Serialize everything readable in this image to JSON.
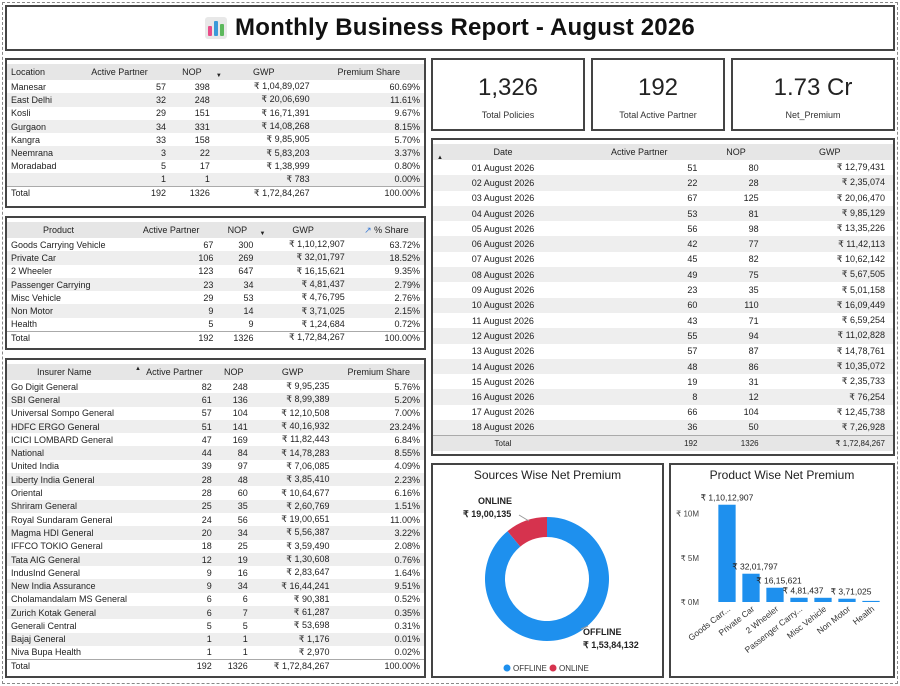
{
  "header": {
    "title": "Monthly Business Report - August 2026"
  },
  "location_table": {
    "columns": [
      "Location",
      "Active Partner",
      "NOP",
      "GWP",
      "Premium Share"
    ],
    "rows": [
      [
        "Manesar",
        "57",
        "398",
        "₹ 1,04,89,027",
        "60.69%"
      ],
      [
        "East Delhi",
        "32",
        "248",
        "₹ 20,06,690",
        "11.61%"
      ],
      [
        "Kosli",
        "29",
        "151",
        "₹ 16,71,391",
        "9.67%"
      ],
      [
        "Gurgaon",
        "34",
        "331",
        "₹ 14,08,268",
        "8.15%"
      ],
      [
        "Kangra",
        "33",
        "158",
        "₹ 9,85,905",
        "5.70%"
      ],
      [
        "Neemrana",
        "3",
        "22",
        "₹ 5,83,203",
        "3.37%"
      ],
      [
        "Moradabad",
        "5",
        "17",
        "₹ 1,38,999",
        "0.80%"
      ],
      [
        "",
        "1",
        "1",
        "₹ 783",
        "0.00%"
      ]
    ],
    "total": [
      "Total",
      "192",
      "1326",
      "₹ 1,72,84,267",
      "100.00%"
    ]
  },
  "product_table": {
    "columns": [
      "Product",
      "Active Partner",
      "NOP",
      "GWP",
      "% Share"
    ],
    "rows": [
      [
        "Goods Carrying Vehicle",
        "67",
        "300",
        "₹ 1,10,12,907",
        "63.72%"
      ],
      [
        "Private Car",
        "106",
        "269",
        "₹ 32,01,797",
        "18.52%"
      ],
      [
        "2 Wheeler",
        "123",
        "647",
        "₹ 16,15,621",
        "9.35%"
      ],
      [
        "Passenger Carrying",
        "23",
        "34",
        "₹ 4,81,437",
        "2.79%"
      ],
      [
        "Misc Vehicle",
        "29",
        "53",
        "₹ 4,76,795",
        "2.76%"
      ],
      [
        "Non Motor",
        "9",
        "14",
        "₹ 3,71,025",
        "2.15%"
      ],
      [
        "Health",
        "5",
        "9",
        "₹ 1,24,684",
        "0.72%"
      ]
    ],
    "total": [
      "Total",
      "192",
      "1326",
      "₹ 1,72,84,267",
      "100.00%"
    ]
  },
  "insurer_table": {
    "columns": [
      "Insurer Name",
      "Active Partner",
      "NOP",
      "GWP",
      "Premium Share"
    ],
    "rows": [
      [
        "Go Digit General",
        "82",
        "248",
        "₹ 9,95,235",
        "5.76%"
      ],
      [
        "SBI General",
        "61",
        "136",
        "₹ 8,99,389",
        "5.20%"
      ],
      [
        "Universal Sompo General",
        "57",
        "104",
        "₹ 12,10,508",
        "7.00%"
      ],
      [
        "HDFC ERGO General",
        "51",
        "141",
        "₹ 40,16,932",
        "23.24%"
      ],
      [
        "ICICI LOMBARD General",
        "47",
        "169",
        "₹ 11,82,443",
        "6.84%"
      ],
      [
        "National",
        "44",
        "84",
        "₹ 14,78,283",
        "8.55%"
      ],
      [
        "United India",
        "39",
        "97",
        "₹ 7,06,085",
        "4.09%"
      ],
      [
        "Liberty India General",
        "28",
        "48",
        "₹ 3,85,410",
        "2.23%"
      ],
      [
        "Oriental",
        "28",
        "60",
        "₹ 10,64,677",
        "6.16%"
      ],
      [
        "Shriram General",
        "25",
        "35",
        "₹ 2,60,769",
        "1.51%"
      ],
      [
        "Royal Sundaram General",
        "24",
        "56",
        "₹ 19,00,651",
        "11.00%"
      ],
      [
        "Magma HDI General",
        "20",
        "34",
        "₹ 5,56,387",
        "3.22%"
      ],
      [
        "IFFCO TOKIO General",
        "18",
        "25",
        "₹ 3,59,490",
        "2.08%"
      ],
      [
        "Tata AIG General",
        "12",
        "19",
        "₹ 1,30,608",
        "0.76%"
      ],
      [
        "IndusInd General",
        "9",
        "16",
        "₹ 2,83,647",
        "1.64%"
      ],
      [
        "New India Assurance",
        "9",
        "34",
        "₹ 16,44,241",
        "9.51%"
      ],
      [
        "Cholamandalam MS General",
        "6",
        "6",
        "₹ 90,381",
        "0.52%"
      ],
      [
        "Zurich Kotak General",
        "6",
        "7",
        "₹ 61,287",
        "0.35%"
      ],
      [
        "Generali Central",
        "5",
        "5",
        "₹ 53,698",
        "0.31%"
      ],
      [
        "Bajaj General",
        "1",
        "1",
        "₹ 1,176",
        "0.01%"
      ],
      [
        "Niva Bupa Health",
        "1",
        "1",
        "₹ 2,970",
        "0.02%"
      ]
    ],
    "total": [
      "Total",
      "192",
      "1326",
      "₹ 1,72,84,267",
      "100.00%"
    ]
  },
  "kpis": [
    {
      "value": "1,326",
      "label": "Total Policies"
    },
    {
      "value": "192",
      "label": "Total Active Partner"
    },
    {
      "value": "1.73 Cr",
      "label": "Net_Premium"
    }
  ],
  "date_table": {
    "columns": [
      "Date",
      "Active Partner",
      "NOP",
      "GWP"
    ],
    "rows": [
      [
        "01 August 2026",
        "51",
        "80",
        "₹ 12,79,431"
      ],
      [
        "02 August 2026",
        "22",
        "28",
        "₹ 2,35,074"
      ],
      [
        "03 August 2026",
        "67",
        "125",
        "₹ 20,06,470"
      ],
      [
        "04 August 2026",
        "53",
        "81",
        "₹ 9,85,129"
      ],
      [
        "05 August 2026",
        "56",
        "98",
        "₹ 13,35,226"
      ],
      [
        "06 August 2026",
        "42",
        "77",
        "₹ 11,42,113"
      ],
      [
        "07 August 2026",
        "45",
        "82",
        "₹ 10,62,142"
      ],
      [
        "08 August 2026",
        "49",
        "75",
        "₹ 5,67,505"
      ],
      [
        "09 August 2026",
        "23",
        "35",
        "₹ 5,01,158"
      ],
      [
        "10 August 2026",
        "60",
        "110",
        "₹ 16,09,449"
      ],
      [
        "11 August 2026",
        "43",
        "71",
        "₹ 6,59,254"
      ],
      [
        "12 August 2026",
        "55",
        "94",
        "₹ 11,02,828"
      ],
      [
        "13 August 2026",
        "57",
        "87",
        "₹ 14,78,761"
      ],
      [
        "14 August 2026",
        "48",
        "86",
        "₹ 10,35,072"
      ],
      [
        "15 August 2026",
        "19",
        "31",
        "₹ 2,35,733"
      ],
      [
        "16 August 2026",
        "8",
        "12",
        "₹ 76,254"
      ],
      [
        "17 August 2026",
        "66",
        "104",
        "₹ 12,45,738"
      ],
      [
        "18 August 2026",
        "36",
        "50",
        "₹ 7,26,928"
      ]
    ],
    "total": [
      "Total",
      "192",
      "1326",
      "₹ 1,72,84,267"
    ]
  },
  "chart_data": [
    {
      "type": "pie",
      "title": "Sources Wise Net Premium",
      "categories": [
        "OFFLINE",
        "ONLINE"
      ],
      "values": [
        15384132,
        1900135
      ],
      "value_labels": [
        "₹ 1,53,84,132",
        "₹ 19,00,135"
      ],
      "colors": [
        "#1e90ee",
        "#d6334e"
      ],
      "legend": [
        "OFFLINE",
        "ONLINE"
      ],
      "legend_position": "bottom"
    },
    {
      "type": "bar",
      "title": "Product Wise Net Premium",
      "categories": [
        "Goods Carr...",
        "Private Car",
        "2 Wheeler",
        "Passenger Carry...",
        "Misc Vehicle",
        "Non Motor",
        "Health"
      ],
      "values": [
        11012907,
        3201797,
        1615621,
        481437,
        476795,
        371025,
        124684
      ],
      "value_labels": [
        "₹ 1,10,12,907",
        "₹ 32,01,797",
        "₹ 16,15,621",
        "₹ 4,81,437",
        "",
        "₹ 3,71,025",
        ""
      ],
      "ylim": [
        0,
        12000000
      ],
      "y_ticks": [
        0,
        5000000,
        10000000
      ],
      "y_tick_labels": [
        "₹ 0M",
        "₹ 5M",
        "₹ 10M"
      ],
      "color": "#1e90ee"
    }
  ]
}
